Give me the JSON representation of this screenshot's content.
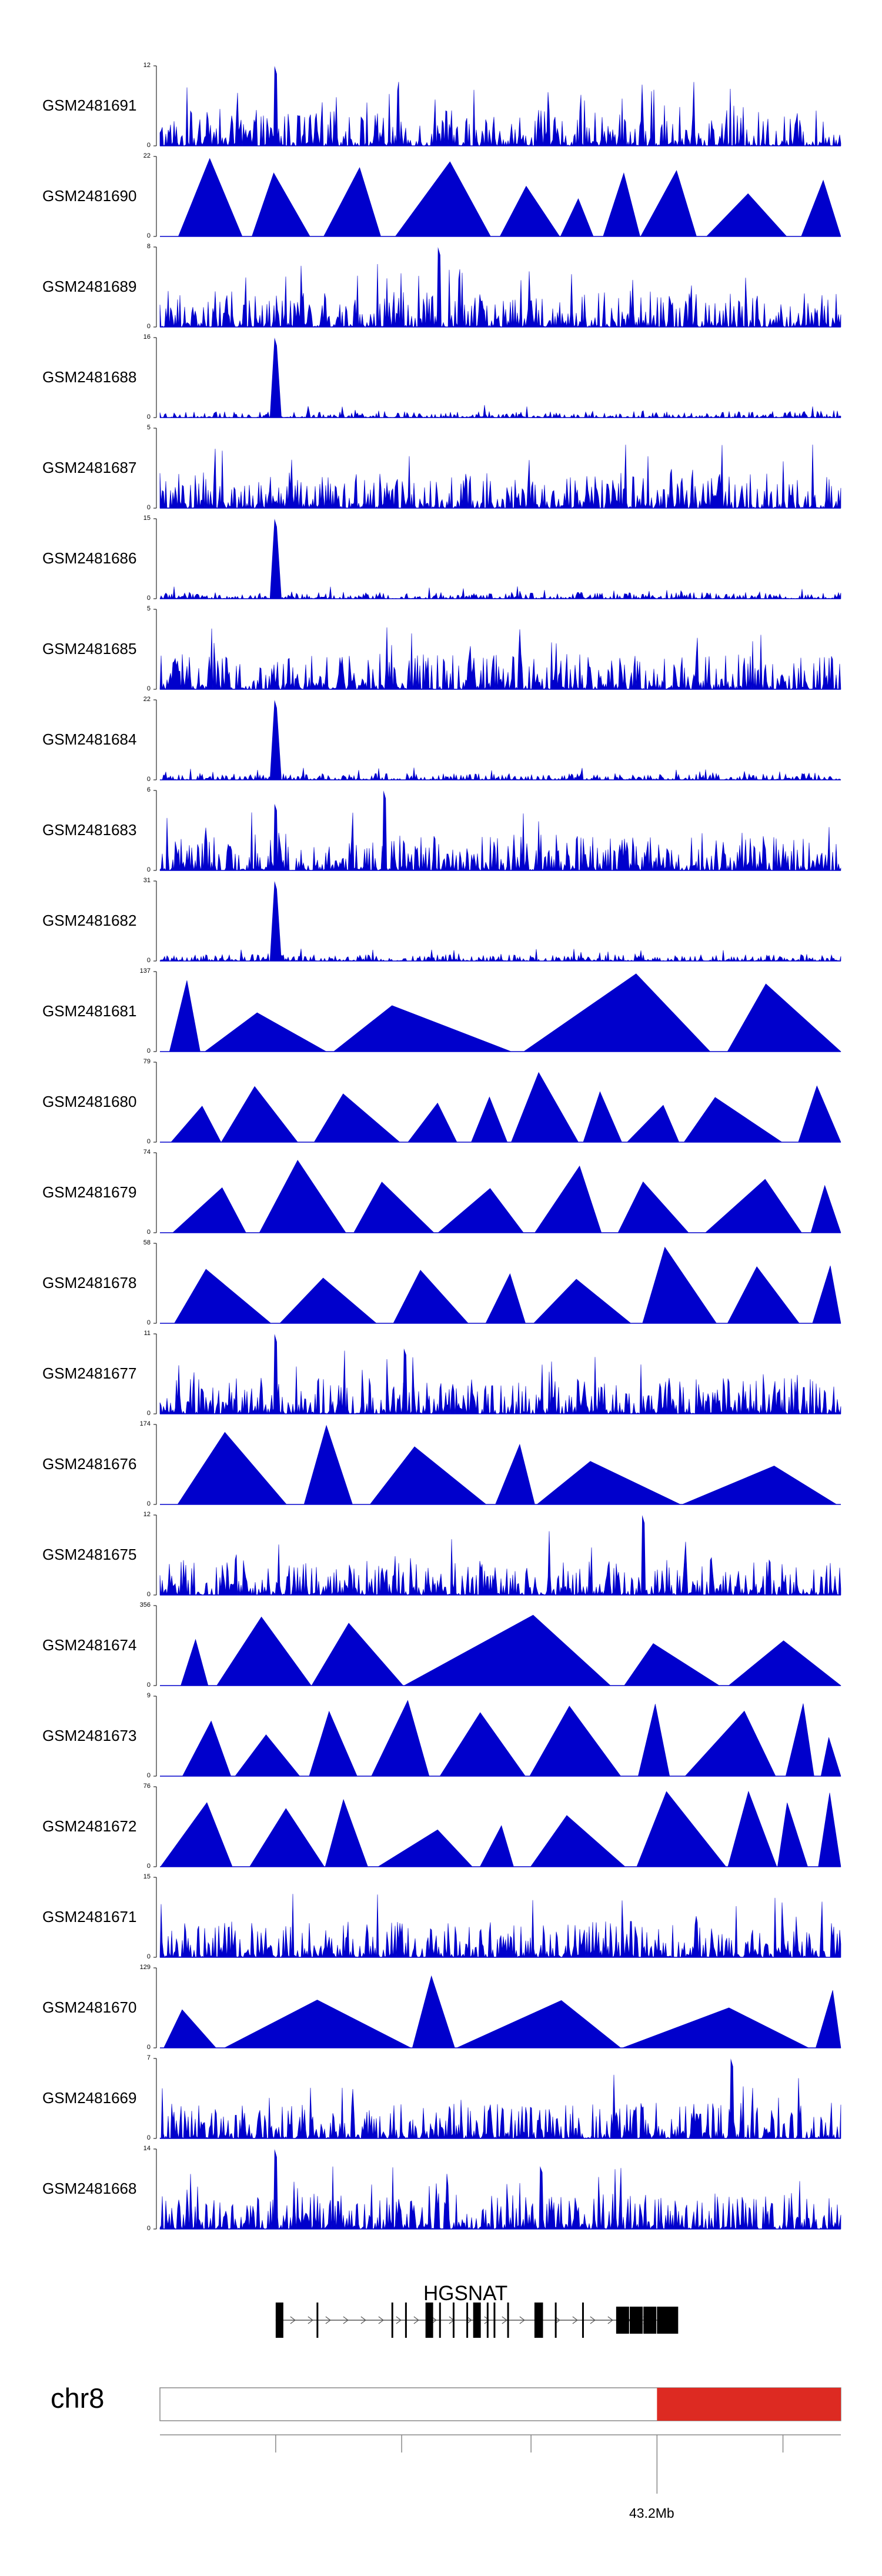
{
  "chart_data": {
    "type": "area",
    "tracks": [
      {
        "name": "GSM2481691",
        "ymax": 12,
        "ymin": 0,
        "color": "#0000cc",
        "profile": "noise",
        "peaks": [
          {
            "pos": 0.17,
            "value": 12
          }
        ]
      },
      {
        "name": "GSM2481690",
        "ymax": 22,
        "ymin": 0,
        "color": "#0000cc",
        "profile": "triangles",
        "peaks": []
      },
      {
        "name": "GSM2481689",
        "ymax": 8,
        "ymin": 0,
        "color": "#0000cc",
        "profile": "noise",
        "peaks": [
          {
            "pos": 0.41,
            "value": 8
          }
        ]
      },
      {
        "name": "GSM2481688",
        "ymax": 16,
        "ymin": 0,
        "color": "#0000cc",
        "profile": "spike",
        "peaks": [
          {
            "pos": 0.17,
            "value": 16
          }
        ]
      },
      {
        "name": "GSM2481687",
        "ymax": 5,
        "ymin": 0,
        "color": "#0000cc",
        "profile": "noise",
        "peaks": []
      },
      {
        "name": "GSM2481686",
        "ymax": 15,
        "ymin": 0,
        "color": "#0000cc",
        "profile": "spike",
        "peaks": [
          {
            "pos": 0.17,
            "value": 15
          }
        ]
      },
      {
        "name": "GSM2481685",
        "ymax": 5,
        "ymin": 0,
        "color": "#0000cc",
        "profile": "noise",
        "peaks": []
      },
      {
        "name": "GSM2481684",
        "ymax": 22,
        "ymin": 0,
        "color": "#0000cc",
        "profile": "spike",
        "peaks": [
          {
            "pos": 0.17,
            "value": 22
          }
        ]
      },
      {
        "name": "GSM2481683",
        "ymax": 6,
        "ymin": 0,
        "color": "#0000cc",
        "profile": "noise",
        "peaks": [
          {
            "pos": 0.17,
            "value": 5
          },
          {
            "pos": 0.33,
            "value": 6
          }
        ]
      },
      {
        "name": "GSM2481682",
        "ymax": 31,
        "ymin": 0,
        "color": "#0000cc",
        "profile": "spike",
        "peaks": [
          {
            "pos": 0.17,
            "value": 31
          }
        ]
      },
      {
        "name": "GSM2481681",
        "ymax": 137,
        "ymin": 0,
        "color": "#0000cc",
        "profile": "triangles",
        "peaks": []
      },
      {
        "name": "GSM2481680",
        "ymax": 79,
        "ymin": 0,
        "color": "#0000cc",
        "profile": "triangles",
        "peaks": []
      },
      {
        "name": "GSM2481679",
        "ymax": 74,
        "ymin": 0,
        "color": "#0000cc",
        "profile": "triangles",
        "peaks": []
      },
      {
        "name": "GSM2481678",
        "ymax": 58,
        "ymin": 0,
        "color": "#0000cc",
        "profile": "triangles",
        "peaks": []
      },
      {
        "name": "GSM2481677",
        "ymax": 11,
        "ymin": 0,
        "color": "#0000cc",
        "profile": "noise",
        "peaks": [
          {
            "pos": 0.17,
            "value": 11
          },
          {
            "pos": 0.36,
            "value": 9
          }
        ]
      },
      {
        "name": "GSM2481676",
        "ymax": 174,
        "ymin": 0,
        "color": "#0000cc",
        "profile": "triangles",
        "peaks": []
      },
      {
        "name": "GSM2481675",
        "ymax": 12,
        "ymin": 0,
        "color": "#0000cc",
        "profile": "noise",
        "peaks": [
          {
            "pos": 0.71,
            "value": 12
          }
        ]
      },
      {
        "name": "GSM2481674",
        "ymax": 356,
        "ymin": 0,
        "color": "#0000cc",
        "profile": "triangles",
        "peaks": []
      },
      {
        "name": "GSM2481673",
        "ymax": 9,
        "ymin": 0,
        "color": "#0000cc",
        "profile": "triangles",
        "peaks": []
      },
      {
        "name": "GSM2481672",
        "ymax": 76,
        "ymin": 0,
        "color": "#0000cc",
        "profile": "triangles",
        "peaks": []
      },
      {
        "name": "GSM2481671",
        "ymax": 15,
        "ymin": 0,
        "color": "#0000cc",
        "profile": "noise",
        "peaks": []
      },
      {
        "name": "GSM2481670",
        "ymax": 129,
        "ymin": 0,
        "color": "#0000cc",
        "profile": "triangles",
        "peaks": []
      },
      {
        "name": "GSM2481669",
        "ymax": 7,
        "ymin": 0,
        "color": "#0000cc",
        "profile": "noise",
        "peaks": [
          {
            "pos": 0.84,
            "value": 7
          }
        ]
      },
      {
        "name": "GSM2481668",
        "ymax": 14,
        "ymin": 0,
        "color": "#0000cc",
        "profile": "noise",
        "peaks": [
          {
            "pos": 0.17,
            "value": 14
          },
          {
            "pos": 0.56,
            "value": 11
          }
        ]
      }
    ],
    "gene": {
      "name": "HGSNAT",
      "strand": "+",
      "start_frac": 0.17,
      "end_frac": 0.75,
      "exons": [
        0.17,
        0.23,
        0.34,
        0.36,
        0.39,
        0.41,
        0.43,
        0.45,
        0.46,
        0.48,
        0.49,
        0.51,
        0.55,
        0.56,
        0.58,
        0.62,
        0.67,
        0.69,
        0.71,
        0.73
      ]
    },
    "chromosome": "chr8",
    "position_label": "43.2Mb",
    "highlight": {
      "start_frac": 0.73,
      "end_frac": 1.0,
      "color": "#dd2a22"
    }
  }
}
